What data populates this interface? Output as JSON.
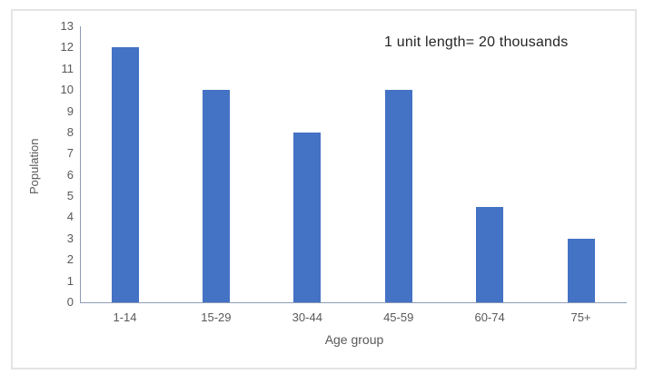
{
  "chart_data": {
    "type": "bar",
    "categories": [
      "1-14",
      "15-29",
      "30-44",
      "45-59",
      "60-74",
      "75+"
    ],
    "values": [
      12,
      10,
      8,
      10,
      4.5,
      3
    ],
    "yticks": [
      0,
      1,
      2,
      3,
      4,
      5,
      6,
      7,
      8,
      9,
      10,
      11,
      12,
      13
    ],
    "annotation": "1 unit length= 20 thousands",
    "xlabel": "Age group",
    "ylabel": "Population",
    "ylim": [
      0,
      13
    ],
    "grid": false,
    "legend": "none",
    "colors": {
      "bar": "#4472C4",
      "axis_line": "#8C9BB5",
      "tick_label": "#595959",
      "category_label": "#595959",
      "axis_title": "#595959",
      "annotation": "#262626",
      "frame_border": "#e4e4e4"
    }
  }
}
